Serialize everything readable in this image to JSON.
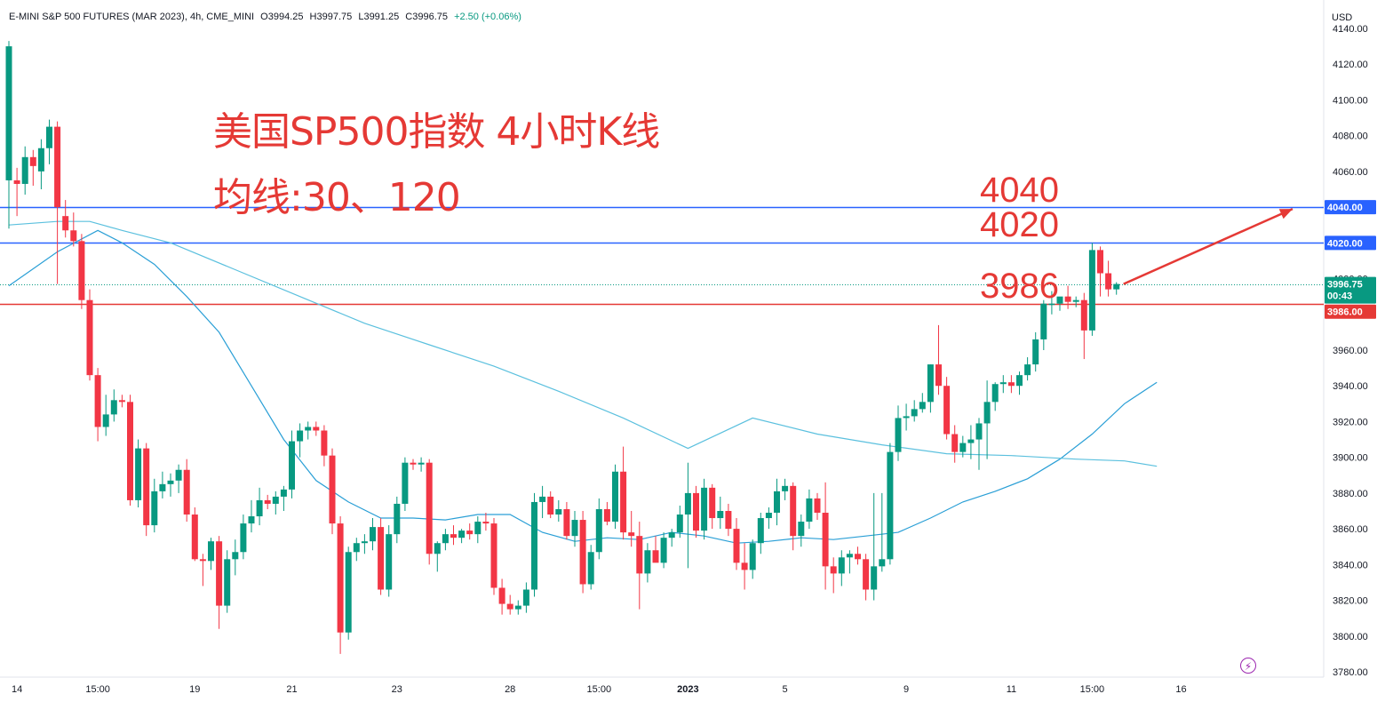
{
  "header": {
    "symbol": "E-MINI S&P 500 FUTURES (MAR 2023), 4h, CME_MINI",
    "open": "O3994.25",
    "high": "H3997.75",
    "low": "L3991.25",
    "close": "C3996.75",
    "change": "+2.50 (+0.06%)"
  },
  "currency": "USD",
  "annotations": {
    "title": "美国SP500指数 4小时K线",
    "subtitle": "均线:30、120",
    "level_4040": "4040",
    "level_4020": "4020",
    "level_3986": "3986"
  },
  "price_labels": {
    "l4040": "4040.00",
    "l4020": "4020.00",
    "last": "3996.75",
    "countdown": "00:43",
    "l3986": "3986.00"
  },
  "colors": {
    "up": "#089981",
    "down": "#f23645",
    "ma30": "#2a9fd6",
    "ma120": "#5bc0de",
    "blue_line": "#2962ff",
    "red_line": "#e53935",
    "annotation": "#e53935"
  },
  "icons": {
    "replay": "lightning-icon",
    "arrow": "arrow-up-right-icon"
  },
  "chart_data": {
    "type": "candlestick",
    "timeframe": "4h",
    "xlabel": "",
    "ylabel": "",
    "ylim": [
      3778,
      4140
    ],
    "y_ticks": [
      "4140.00",
      "4120.00",
      "4100.00",
      "4080.00",
      "4060.00",
      "4040.00",
      "4020.00",
      "4000.00",
      "3980.00",
      "3960.00",
      "3940.00",
      "3920.00",
      "3900.00",
      "3880.00",
      "3860.00",
      "3840.00",
      "3820.00",
      "3800.00",
      "3780.00"
    ],
    "x_ticks": [
      {
        "label": "14",
        "bar": 1
      },
      {
        "label": "15:00",
        "bar": 11
      },
      {
        "label": "19",
        "bar": 23
      },
      {
        "label": "21",
        "bar": 35
      },
      {
        "label": "23",
        "bar": 48
      },
      {
        "label": "28",
        "bar": 62
      },
      {
        "label": "15:00",
        "bar": 73
      },
      {
        "label": "2023",
        "bar": 84
      },
      {
        "label": "5",
        "bar": 96
      },
      {
        "label": "9",
        "bar": 111
      },
      {
        "label": "11",
        "bar": 124
      },
      {
        "label": "15:00",
        "bar": 134
      },
      {
        "label": "16",
        "bar": 145
      }
    ],
    "horizontal_lines": [
      {
        "label": "4040",
        "value": 4040,
        "color": "#2962ff"
      },
      {
        "label": "4020",
        "value": 4020,
        "color": "#2962ff"
      },
      {
        "label": "3986",
        "value": 3986,
        "color": "#e53935"
      }
    ],
    "candles": [
      {
        "o": 4055,
        "h": 4133,
        "l": 4028,
        "c": 4130
      },
      {
        "o": 4055,
        "h": 4062,
        "l": 4035,
        "c": 4053
      },
      {
        "o": 4053,
        "h": 4074,
        "l": 4047,
        "c": 4068
      },
      {
        "o": 4068,
        "h": 4072,
        "l": 4052,
        "c": 4063
      },
      {
        "o": 4060,
        "h": 4078,
        "l": 4050,
        "c": 4073
      },
      {
        "o": 4073,
        "h": 4089,
        "l": 4064,
        "c": 4085
      },
      {
        "o": 4085,
        "h": 4088,
        "l": 3997,
        "c": 4040
      },
      {
        "o": 4035,
        "h": 4044,
        "l": 4023,
        "c": 4027
      },
      {
        "o": 4027,
        "h": 4037,
        "l": 4018,
        "c": 4021
      },
      {
        "o": 4021,
        "h": 4025,
        "l": 3983,
        "c": 3988
      },
      {
        "o": 3988,
        "h": 3994,
        "l": 3943,
        "c": 3946
      },
      {
        "o": 3946,
        "h": 3950,
        "l": 3909,
        "c": 3917
      },
      {
        "o": 3917,
        "h": 3935,
        "l": 3912,
        "c": 3924
      },
      {
        "o": 3924,
        "h": 3938,
        "l": 3920,
        "c": 3932
      },
      {
        "o": 3932,
        "h": 3935,
        "l": 3928,
        "c": 3931
      },
      {
        "o": 3931,
        "h": 3935,
        "l": 3873,
        "c": 3876
      },
      {
        "o": 3876,
        "h": 3910,
        "l": 3872,
        "c": 3905
      },
      {
        "o": 3905,
        "h": 3908,
        "l": 3856,
        "c": 3862
      },
      {
        "o": 3862,
        "h": 3888,
        "l": 3858,
        "c": 3881
      },
      {
        "o": 3881,
        "h": 3892,
        "l": 3877,
        "c": 3885
      },
      {
        "o": 3885,
        "h": 3891,
        "l": 3878,
        "c": 3887
      },
      {
        "o": 3887,
        "h": 3896,
        "l": 3880,
        "c": 3893
      },
      {
        "o": 3893,
        "h": 3899,
        "l": 3864,
        "c": 3868
      },
      {
        "o": 3868,
        "h": 3872,
        "l": 3842,
        "c": 3843
      },
      {
        "o": 3843,
        "h": 3846,
        "l": 3828,
        "c": 3842
      },
      {
        "o": 3842,
        "h": 3855,
        "l": 3837,
        "c": 3853
      },
      {
        "o": 3853,
        "h": 3856,
        "l": 3804,
        "c": 3817
      },
      {
        "o": 3817,
        "h": 3848,
        "l": 3813,
        "c": 3843
      },
      {
        "o": 3843,
        "h": 3854,
        "l": 3834,
        "c": 3847
      },
      {
        "o": 3847,
        "h": 3868,
        "l": 3843,
        "c": 3863
      },
      {
        "o": 3863,
        "h": 3876,
        "l": 3858,
        "c": 3867
      },
      {
        "o": 3867,
        "h": 3883,
        "l": 3862,
        "c": 3876
      },
      {
        "o": 3876,
        "h": 3879,
        "l": 3871,
        "c": 3874
      },
      {
        "o": 3874,
        "h": 3881,
        "l": 3868,
        "c": 3878
      },
      {
        "o": 3878,
        "h": 3884,
        "l": 3870,
        "c": 3882
      },
      {
        "o": 3882,
        "h": 3915,
        "l": 3877,
        "c": 3909
      },
      {
        "o": 3909,
        "h": 3919,
        "l": 3900,
        "c": 3915
      },
      {
        "o": 3915,
        "h": 3920,
        "l": 3910,
        "c": 3917
      },
      {
        "o": 3917,
        "h": 3920,
        "l": 3912,
        "c": 3915
      },
      {
        "o": 3915,
        "h": 3918,
        "l": 3895,
        "c": 3901
      },
      {
        "o": 3901,
        "h": 3905,
        "l": 3857,
        "c": 3863
      },
      {
        "o": 3863,
        "h": 3867,
        "l": 3790,
        "c": 3802
      },
      {
        "o": 3802,
        "h": 3850,
        "l": 3798,
        "c": 3847
      },
      {
        "o": 3847,
        "h": 3855,
        "l": 3842,
        "c": 3852
      },
      {
        "o": 3852,
        "h": 3857,
        "l": 3846,
        "c": 3853
      },
      {
        "o": 3853,
        "h": 3866,
        "l": 3848,
        "c": 3861
      },
      {
        "o": 3861,
        "h": 3866,
        "l": 3823,
        "c": 3826
      },
      {
        "o": 3826,
        "h": 3862,
        "l": 3822,
        "c": 3857
      },
      {
        "o": 3857,
        "h": 3878,
        "l": 3852,
        "c": 3874
      },
      {
        "o": 3874,
        "h": 3900,
        "l": 3870,
        "c": 3897
      },
      {
        "o": 3897,
        "h": 3899,
        "l": 3893,
        "c": 3896
      },
      {
        "o": 3896,
        "h": 3900,
        "l": 3892,
        "c": 3897
      },
      {
        "o": 3897,
        "h": 3899,
        "l": 3840,
        "c": 3846
      },
      {
        "o": 3846,
        "h": 3853,
        "l": 3836,
        "c": 3852
      },
      {
        "o": 3852,
        "h": 3860,
        "l": 3848,
        "c": 3857
      },
      {
        "o": 3857,
        "h": 3862,
        "l": 3851,
        "c": 3855
      },
      {
        "o": 3855,
        "h": 3860,
        "l": 3852,
        "c": 3859
      },
      {
        "o": 3859,
        "h": 3863,
        "l": 3854,
        "c": 3857
      },
      {
        "o": 3857,
        "h": 3867,
        "l": 3852,
        "c": 3864
      },
      {
        "o": 3864,
        "h": 3869,
        "l": 3859,
        "c": 3863
      },
      {
        "o": 3863,
        "h": 3866,
        "l": 3823,
        "c": 3827
      },
      {
        "o": 3827,
        "h": 3832,
        "l": 3812,
        "c": 3818
      },
      {
        "o": 3818,
        "h": 3823,
        "l": 3812,
        "c": 3815
      },
      {
        "o": 3815,
        "h": 3820,
        "l": 3812,
        "c": 3817
      },
      {
        "o": 3817,
        "h": 3830,
        "l": 3813,
        "c": 3826
      },
      {
        "o": 3826,
        "h": 3880,
        "l": 3822,
        "c": 3875
      },
      {
        "o": 3875,
        "h": 3884,
        "l": 3866,
        "c": 3878
      },
      {
        "o": 3878,
        "h": 3881,
        "l": 3866,
        "c": 3868
      },
      {
        "o": 3868,
        "h": 3876,
        "l": 3864,
        "c": 3871
      },
      {
        "o": 3871,
        "h": 3875,
        "l": 3854,
        "c": 3856
      },
      {
        "o": 3856,
        "h": 3870,
        "l": 3850,
        "c": 3865
      },
      {
        "o": 3865,
        "h": 3870,
        "l": 3824,
        "c": 3829
      },
      {
        "o": 3829,
        "h": 3851,
        "l": 3826,
        "c": 3847
      },
      {
        "o": 3847,
        "h": 3877,
        "l": 3843,
        "c": 3871
      },
      {
        "o": 3871,
        "h": 3875,
        "l": 3862,
        "c": 3864
      },
      {
        "o": 3864,
        "h": 3896,
        "l": 3860,
        "c": 3892
      },
      {
        "o": 3892,
        "h": 3906,
        "l": 3854,
        "c": 3858
      },
      {
        "o": 3858,
        "h": 3870,
        "l": 3850,
        "c": 3856
      },
      {
        "o": 3856,
        "h": 3864,
        "l": 3815,
        "c": 3835
      },
      {
        "o": 3835,
        "h": 3852,
        "l": 3830,
        "c": 3848
      },
      {
        "o": 3848,
        "h": 3856,
        "l": 3842,
        "c": 3841
      },
      {
        "o": 3841,
        "h": 3858,
        "l": 3838,
        "c": 3855
      },
      {
        "o": 3855,
        "h": 3860,
        "l": 3850,
        "c": 3858
      },
      {
        "o": 3858,
        "h": 3873,
        "l": 3855,
        "c": 3868
      },
      {
        "o": 3868,
        "h": 3897,
        "l": 3838,
        "c": 3880
      },
      {
        "o": 3880,
        "h": 3884,
        "l": 3855,
        "c": 3859
      },
      {
        "o": 3859,
        "h": 3888,
        "l": 3854,
        "c": 3883
      },
      {
        "o": 3883,
        "h": 3885,
        "l": 3860,
        "c": 3866
      },
      {
        "o": 3866,
        "h": 3878,
        "l": 3860,
        "c": 3870
      },
      {
        "o": 3870,
        "h": 3874,
        "l": 3856,
        "c": 3860
      },
      {
        "o": 3860,
        "h": 3866,
        "l": 3837,
        "c": 3841
      },
      {
        "o": 3841,
        "h": 3852,
        "l": 3826,
        "c": 3837
      },
      {
        "o": 3837,
        "h": 3854,
        "l": 3832,
        "c": 3852
      },
      {
        "o": 3852,
        "h": 3869,
        "l": 3846,
        "c": 3866
      },
      {
        "o": 3866,
        "h": 3872,
        "l": 3860,
        "c": 3869
      },
      {
        "o": 3869,
        "h": 3888,
        "l": 3862,
        "c": 3881
      },
      {
        "o": 3881,
        "h": 3888,
        "l": 3876,
        "c": 3884
      },
      {
        "o": 3884,
        "h": 3886,
        "l": 3848,
        "c": 3856
      },
      {
        "o": 3856,
        "h": 3868,
        "l": 3850,
        "c": 3864
      },
      {
        "o": 3864,
        "h": 3882,
        "l": 3860,
        "c": 3877
      },
      {
        "o": 3877,
        "h": 3880,
        "l": 3865,
        "c": 3869
      },
      {
        "o": 3869,
        "h": 3886,
        "l": 3826,
        "c": 3839
      },
      {
        "o": 3839,
        "h": 3844,
        "l": 3824,
        "c": 3835
      },
      {
        "o": 3835,
        "h": 3848,
        "l": 3828,
        "c": 3844
      },
      {
        "o": 3844,
        "h": 3848,
        "l": 3835,
        "c": 3846
      },
      {
        "o": 3846,
        "h": 3850,
        "l": 3840,
        "c": 3843
      },
      {
        "o": 3843,
        "h": 3846,
        "l": 3820,
        "c": 3826
      },
      {
        "o": 3826,
        "h": 3880,
        "l": 3820,
        "c": 3839
      },
      {
        "o": 3839,
        "h": 3880,
        "l": 3836,
        "c": 3843
      },
      {
        "o": 3843,
        "h": 3908,
        "l": 3840,
        "c": 3903
      },
      {
        "o": 3903,
        "h": 3929,
        "l": 3898,
        "c": 3922
      },
      {
        "o": 3922,
        "h": 3930,
        "l": 3915,
        "c": 3923
      },
      {
        "o": 3923,
        "h": 3932,
        "l": 3920,
        "c": 3927
      },
      {
        "o": 3927,
        "h": 3936,
        "l": 3925,
        "c": 3931
      },
      {
        "o": 3931,
        "h": 3952,
        "l": 3925,
        "c": 3952
      },
      {
        "o": 3952,
        "h": 3974,
        "l": 3935,
        "c": 3940
      },
      {
        "o": 3940,
        "h": 3945,
        "l": 3910,
        "c": 3913
      },
      {
        "o": 3913,
        "h": 3918,
        "l": 3897,
        "c": 3903
      },
      {
        "o": 3903,
        "h": 3912,
        "l": 3900,
        "c": 3908
      },
      {
        "o": 3908,
        "h": 3918,
        "l": 3899,
        "c": 3910
      },
      {
        "o": 3910,
        "h": 3922,
        "l": 3893,
        "c": 3919
      },
      {
        "o": 3919,
        "h": 3943,
        "l": 3899,
        "c": 3931
      },
      {
        "o": 3931,
        "h": 3942,
        "l": 3926,
        "c": 3941
      },
      {
        "o": 3941,
        "h": 3946,
        "l": 3936,
        "c": 3942
      },
      {
        "o": 3942,
        "h": 3946,
        "l": 3936,
        "c": 3940
      },
      {
        "o": 3940,
        "h": 3948,
        "l": 3935,
        "c": 3946
      },
      {
        "o": 3946,
        "h": 3956,
        "l": 3943,
        "c": 3952
      },
      {
        "o": 3952,
        "h": 3970,
        "l": 3948,
        "c": 3966
      },
      {
        "o": 3966,
        "h": 3988,
        "l": 3960,
        "c": 3986
      },
      {
        "o": 3986,
        "h": 3993,
        "l": 3980,
        "c": 3986
      },
      {
        "o": 3986,
        "h": 3989,
        "l": 3982,
        "c": 3990
      },
      {
        "o": 3990,
        "h": 3996,
        "l": 3983,
        "c": 3987
      },
      {
        "o": 3987,
        "h": 3990,
        "l": 3984,
        "c": 3988
      },
      {
        "o": 3988,
        "h": 3992,
        "l": 3955,
        "c": 3971
      },
      {
        "o": 3971,
        "h": 4020,
        "l": 3968,
        "c": 4016
      },
      {
        "o": 4016,
        "h": 4018,
        "l": 3990,
        "c": 4003
      },
      {
        "o": 4003,
        "h": 4010,
        "l": 3990,
        "c": 3994
      },
      {
        "o": 3994,
        "h": 3998,
        "l": 3991,
        "c": 3997
      }
    ],
    "series": [
      {
        "name": "",
        "type": "ma",
        "period": 30,
        "values": [
          [
            0,
            3996
          ],
          [
            6,
            4015
          ],
          [
            11,
            4027
          ],
          [
            14,
            4020
          ],
          [
            18,
            4008
          ],
          [
            22,
            3990
          ],
          [
            26,
            3970
          ],
          [
            30,
            3940
          ],
          [
            34,
            3910
          ],
          [
            38,
            3887
          ],
          [
            42,
            3875
          ],
          [
            46,
            3866
          ],
          [
            50,
            3866
          ],
          [
            54,
            3865
          ],
          [
            58,
            3868
          ],
          [
            62,
            3868
          ],
          [
            66,
            3858
          ],
          [
            70,
            3853
          ],
          [
            74,
            3855
          ],
          [
            78,
            3854
          ],
          [
            82,
            3858
          ],
          [
            86,
            3856
          ],
          [
            90,
            3852
          ],
          [
            94,
            3853
          ],
          [
            98,
            3855
          ],
          [
            102,
            3854
          ],
          [
            106,
            3856
          ],
          [
            110,
            3858
          ],
          [
            114,
            3866
          ],
          [
            118,
            3875
          ],
          [
            122,
            3881
          ],
          [
            126,
            3888
          ],
          [
            130,
            3899
          ],
          [
            134,
            3913
          ],
          [
            138,
            3930
          ],
          [
            142,
            3942
          ]
        ]
      },
      {
        "name": "",
        "type": "ma",
        "period": 120,
        "values": [
          [
            0,
            4030
          ],
          [
            6,
            4032
          ],
          [
            10,
            4032
          ],
          [
            14,
            4027
          ],
          [
            20,
            4020
          ],
          [
            28,
            4005
          ],
          [
            36,
            3990
          ],
          [
            44,
            3975
          ],
          [
            52,
            3963
          ],
          [
            60,
            3951
          ],
          [
            68,
            3937
          ],
          [
            76,
            3922
          ],
          [
            84,
            3905
          ],
          [
            92,
            3922
          ],
          [
            100,
            3913
          ],
          [
            108,
            3907
          ],
          [
            116,
            3902
          ],
          [
            124,
            3901
          ],
          [
            132,
            3899
          ],
          [
            138,
            3898
          ],
          [
            142,
            3895
          ]
        ]
      }
    ]
  }
}
